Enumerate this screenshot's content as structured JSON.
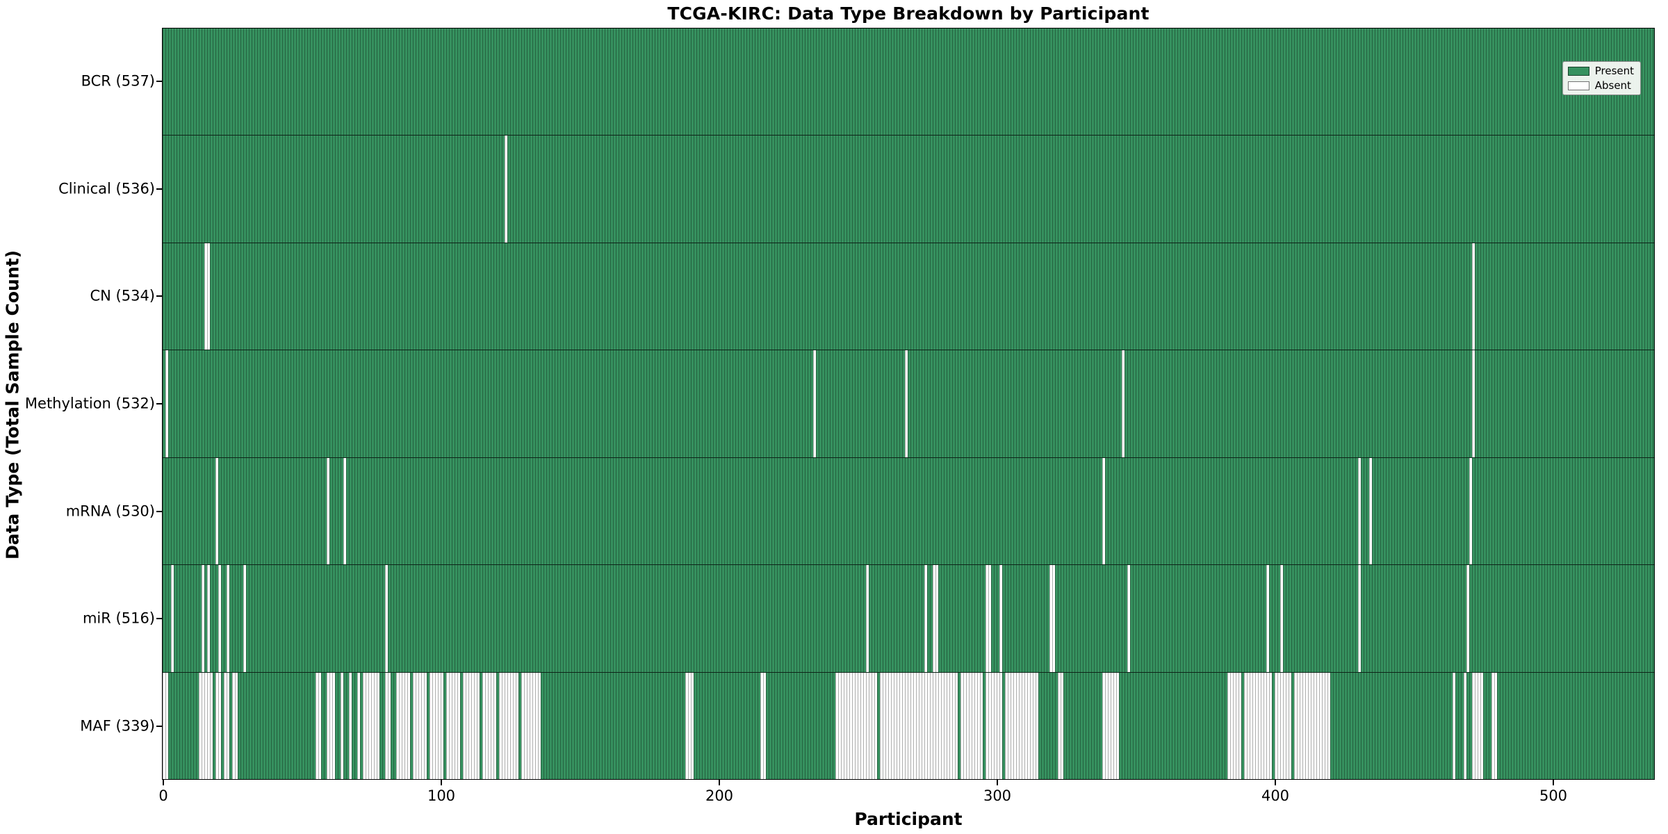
{
  "title": "TCGA-KIRC: Data Type Breakdown by Participant",
  "chart_data": {
    "type": "heatmap",
    "title": "TCGA-KIRC: Data Type Breakdown by Participant",
    "xlabel": "Participant",
    "ylabel": "Data Type (Total Sample Count)",
    "x_range": [
      0,
      537
    ],
    "n_participants": 537,
    "x_ticks": [
      0,
      100,
      200,
      300,
      400,
      500
    ],
    "grid": false,
    "legend_position": "upper right",
    "legend": [
      {
        "label": "Present",
        "color": "#36915f"
      },
      {
        "label": "Absent",
        "color": "#ffffff"
      }
    ],
    "colors": {
      "present": "#36915f",
      "absent": "#ffffff",
      "bar_edge": "rgba(0,0,0,0.32)",
      "row_separator": "rgba(0,0,0,0.75)",
      "spine": "#000000"
    },
    "value_semantics": "1 = sample present for participant, 0 = absent",
    "rows": [
      {
        "name": "BCR",
        "label": "BCR (537)",
        "present_count": 537,
        "absent_ranges": []
      },
      {
        "name": "Clinical",
        "label": "Clinical (536)",
        "present_count": 536,
        "absent_ranges": [
          [
            123,
            123
          ]
        ]
      },
      {
        "name": "CN",
        "label": "CN (534)",
        "present_count": 534,
        "absent_ranges": [
          [
            15,
            16
          ],
          [
            471,
            471
          ]
        ]
      },
      {
        "name": "Methylation",
        "label": "Methylation (532)",
        "present_count": 532,
        "absent_ranges": [
          [
            1,
            1
          ],
          [
            234,
            234
          ],
          [
            267,
            267
          ],
          [
            345,
            345
          ],
          [
            471,
            471
          ]
        ]
      },
      {
        "name": "mRNA",
        "label": "mRNA (530)",
        "present_count": 530,
        "absent_ranges": [
          [
            19,
            19
          ],
          [
            59,
            59
          ],
          [
            65,
            65
          ],
          [
            338,
            338
          ],
          [
            430,
            430
          ],
          [
            434,
            434
          ],
          [
            470,
            470
          ]
        ]
      },
      {
        "name": "miR",
        "label": "miR (516)",
        "present_count": 516,
        "absent_ranges": [
          [
            3,
            3
          ],
          [
            14,
            14
          ],
          [
            16,
            16
          ],
          [
            20,
            20
          ],
          [
            23,
            23
          ],
          [
            29,
            29
          ],
          [
            80,
            80
          ],
          [
            253,
            253
          ],
          [
            274,
            274
          ],
          [
            277,
            278
          ],
          [
            296,
            297
          ],
          [
            301,
            301
          ],
          [
            319,
            320
          ],
          [
            347,
            347
          ],
          [
            397,
            397
          ],
          [
            402,
            402
          ],
          [
            430,
            430
          ],
          [
            469,
            469
          ]
        ]
      },
      {
        "name": "MAF",
        "label": "MAF (339)",
        "present_count": 339,
        "absent_ranges": [
          [
            0,
            1
          ],
          [
            13,
            17
          ],
          [
            19,
            20
          ],
          [
            22,
            23
          ],
          [
            25,
            26
          ],
          [
            55,
            56
          ],
          [
            59,
            61
          ],
          [
            64,
            64
          ],
          [
            67,
            67
          ],
          [
            70,
            70
          ],
          [
            72,
            77
          ],
          [
            80,
            81
          ],
          [
            84,
            88
          ],
          [
            90,
            94
          ],
          [
            96,
            100
          ],
          [
            102,
            106
          ],
          [
            108,
            113
          ],
          [
            115,
            119
          ],
          [
            121,
            127
          ],
          [
            129,
            135
          ],
          [
            188,
            190
          ],
          [
            215,
            216
          ],
          [
            242,
            256
          ],
          [
            258,
            285
          ],
          [
            287,
            294
          ],
          [
            296,
            301
          ],
          [
            303,
            314
          ],
          [
            322,
            323
          ],
          [
            338,
            343
          ],
          [
            383,
            387
          ],
          [
            389,
            398
          ],
          [
            400,
            405
          ],
          [
            407,
            419
          ],
          [
            464,
            464
          ],
          [
            468,
            468
          ],
          [
            471,
            474
          ],
          [
            478,
            479
          ]
        ]
      }
    ]
  }
}
